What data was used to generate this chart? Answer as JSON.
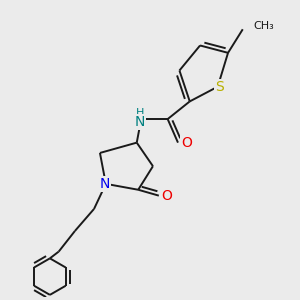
{
  "background_color": "#ebebeb",
  "bond_color": "#1a1a1a",
  "figsize": [
    3.0,
    3.0
  ],
  "dpi": 100,
  "S_color": "#b8b000",
  "N_color": "#0000ee",
  "NH_color": "#008080",
  "O_color": "#ee0000",
  "line_width": 1.4,
  "xlim": [
    0,
    10
  ],
  "ylim": [
    0,
    10
  ]
}
